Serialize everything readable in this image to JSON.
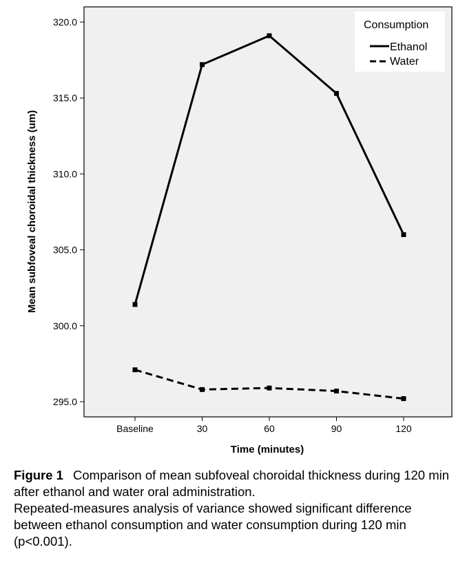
{
  "chart_data": {
    "type": "line",
    "x": [
      "Baseline",
      "30",
      "60",
      "90",
      "120"
    ],
    "series": [
      {
        "name": "Ethanol",
        "values": [
          301.4,
          317.2,
          319.1,
          315.3,
          306.0
        ],
        "style": "solid"
      },
      {
        "name": "Water",
        "values": [
          297.1,
          295.8,
          295.9,
          295.7,
          295.2
        ],
        "style": "dashed"
      }
    ],
    "xlabel": "Time (minutes)",
    "ylabel": "Mean subfoveal choroidal thickness (um)",
    "ylim": [
      294.0,
      321.0
    ],
    "yticks": [
      "295.0",
      "300.0",
      "305.0",
      "310.0",
      "315.0",
      "320.0"
    ],
    "legend_title": "Consumption",
    "legend_position": "top-right",
    "grid": false,
    "colors": {
      "plot_background": "#f0f0f0",
      "line": "#000000"
    }
  },
  "caption": {
    "label": "Figure 1",
    "text": "Comparison of mean subfoveal choroidal thickness during 120 min after ethanol and water oral administration.",
    "detail": "Repeated-measures analysis of variance showed significant difference between ethanol consumption and water consumption during 120 min (p<0.001)."
  }
}
